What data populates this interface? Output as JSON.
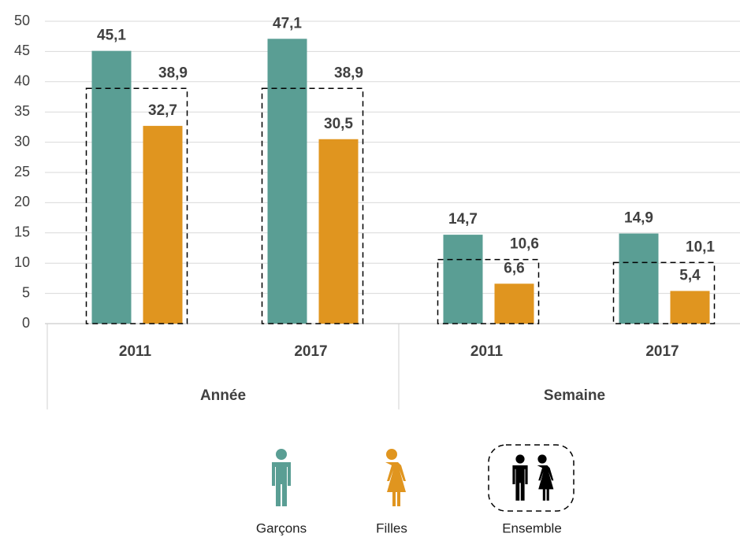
{
  "chart_data": {
    "type": "bar",
    "categories": [
      "2011",
      "2017",
      "2011",
      "2017"
    ],
    "groups": [
      "Année",
      "Semaine"
    ],
    "series": [
      {
        "name": "Garçons",
        "color": "#5a9e94",
        "values": [
          45.1,
          47.1,
          14.7,
          14.9
        ],
        "value_labels": [
          "45,1",
          "47,1",
          "14,7",
          "14,9"
        ]
      },
      {
        "name": "Filles",
        "color": "#e0951f",
        "values": [
          32.7,
          30.5,
          6.6,
          5.4
        ],
        "value_labels": [
          "32,7",
          "30,5",
          "6,6",
          "5,4"
        ]
      },
      {
        "name": "Ensemble",
        "color": "#000000",
        "values": [
          38.9,
          38.9,
          10.6,
          10.1
        ],
        "value_labels": [
          "38,9",
          "38,9",
          "10,6",
          "10,1"
        ]
      }
    ],
    "ylim": [
      0,
      50
    ],
    "yticks": [
      0,
      5,
      10,
      15,
      20,
      25,
      30,
      35,
      40,
      45,
      50
    ],
    "grid": true
  }
}
